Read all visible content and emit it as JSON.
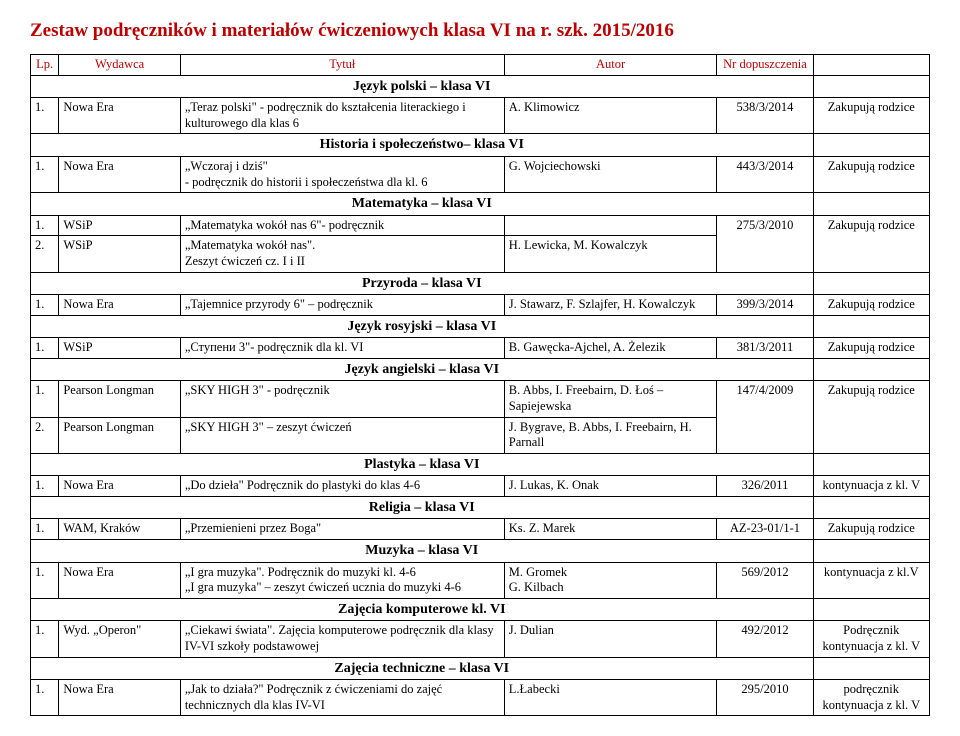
{
  "title": "Zestaw podręczników i materiałów ćwiczeniowych klasa VI na r. szk. 2015/2016",
  "headers": {
    "lp": "Lp.",
    "publisher": "Wydawca",
    "title": "Tytuł",
    "author": "Autor",
    "approval": "Nr dopuszczenia",
    "note": ""
  },
  "colors": {
    "heading": "#c00000",
    "text": "#000000",
    "border": "#000000",
    "bg": "#ffffff"
  },
  "sections": [
    {
      "name": "Język polski – klasa VI",
      "rows": [
        {
          "lp": "1.",
          "pub": "Nowa Era",
          "title": "„Teraz polski\" - podręcznik do kształcenia literackiego i kulturowego dla klas 6",
          "author": "A. Klimowicz",
          "approval": "538/3/2014",
          "note": "Zakupują rodzice"
        }
      ]
    },
    {
      "name": "Historia i społeczeństwo– klasa VI",
      "rows": [
        {
          "lp": "1.",
          "pub": "Nowa Era",
          "title": "„Wczoraj i dziś\"\n- podręcznik do historii i społeczeństwa dla kl. 6",
          "author": "G. Wojciechowski",
          "approval": "443/3/2014",
          "note": "Zakupują rodzice"
        }
      ]
    },
    {
      "name": "Matematyka – klasa VI",
      "rows": [
        {
          "lp": "1.",
          "pub": "WSiP",
          "title": "„Matematyka wokół nas 6\"- podręcznik",
          "author": "",
          "approval": "",
          "note": "",
          "group": true
        },
        {
          "lp": "2.",
          "pub": "WSiP",
          "title": "„Matematyka wokół nas\".\nZeszyt ćwiczeń  cz. I i II",
          "author": "H. Lewicka,  M. Kowalczyk",
          "approval": "275/3/2010",
          "note": "Zakupują rodzice",
          "groupEnd": true
        }
      ]
    },
    {
      "name": "Przyroda – klasa VI",
      "rows": [
        {
          "lp": "1.",
          "pub": "Nowa Era",
          "title": "„Tajemnice przyrody 6\" – podręcznik",
          "author": "J. Stawarz, F. Szlajfer, H. Kowalczyk",
          "approval": "399/3/2014",
          "note": "Zakupują rodzice"
        }
      ]
    },
    {
      "name": "Język rosyjski – klasa VI",
      "rows": [
        {
          "lp": "1.",
          "pub": "WSiP",
          "title": "„Ступени 3\"- podręcznik dla kl. VI",
          "author": "B. Gawęcka-Ajchel, A. Żelezik",
          "approval": "381/3/2011",
          "note": "Zakupują rodzice"
        }
      ]
    },
    {
      "name": "Język angielski – klasa VI",
      "rows": [
        {
          "lp": "1.",
          "pub": "Pearson Longman",
          "title": "„SKY HIGH 3\"  - podręcznik",
          "author": "B. Abbs, I. Freebairn, D. Łoś – Sapiejewska",
          "approval": "",
          "note": "",
          "group": true
        },
        {
          "lp": "2.",
          "pub": "Pearson Longman",
          "title": "„SKY HIGH 3\" – zeszyt ćwiczeń",
          "author": "J. Bygrave, B. Abbs, I. Freebairn, H. Parnall",
          "approval": "147/4/2009",
          "note": "Zakupują rodzice",
          "groupEnd": true
        }
      ]
    },
    {
      "name": "Plastyka – klasa VI",
      "rows": [
        {
          "lp": "1.",
          "pub": "Nowa Era",
          "title": "„Do dzieła\" Podręcznik do plastyki do klas 4-6",
          "author": "J. Lukas, K. Onak",
          "approval": "326/2011",
          "note": "kontynuacja z kl. V"
        }
      ]
    },
    {
      "name": "Religia – klasa VI",
      "rows": [
        {
          "lp": "1.",
          "pub": "WAM, Kraków",
          "title": "„Przemienieni przez Boga\"",
          "author": "Ks. Z. Marek",
          "approval": "AZ-23-01/1-1",
          "note": "Zakupują rodzice"
        }
      ]
    },
    {
      "name": "Muzyka – klasa VI",
      "rows": [
        {
          "lp": "1.",
          "pub": "Nowa Era",
          "title": "„I gra muzyka\". Podręcznik do muzyki kl. 4-6\n„I gra muzyka\" – zeszyt ćwiczeń ucznia do muzyki 4-6",
          "author": "M. Gromek\nG. Kilbach",
          "approval": "569/2012",
          "note": "kontynuacja z kl.V"
        }
      ]
    },
    {
      "name": "Zajęcia komputerowe kl. VI",
      "rows": [
        {
          "lp": "1.",
          "pub": "Wyd. „Operon\"",
          "title": "„Ciekawi świata\". Zajęcia komputerowe podręcznik dla klasy IV-VI szkoły podstawowej",
          "author": "J. Dulian",
          "approval": "492/2012",
          "note": "Podręcznik kontynuacja z kl. V"
        }
      ]
    },
    {
      "name": "Zajęcia techniczne – klasa VI",
      "rows": [
        {
          "lp": "1.",
          "pub": "Nowa Era",
          "title": "„Jak to działa?\" Podręcznik z ćwiczeniami do zajęć technicznych dla klas IV-VI",
          "author": "L.Łabecki",
          "approval": "295/2010",
          "note": "podręcznik kontynuacja z kl. V"
        }
      ]
    }
  ]
}
